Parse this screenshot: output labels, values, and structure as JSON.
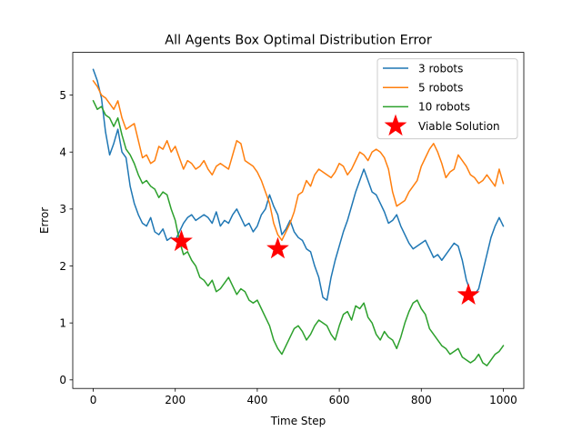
{
  "chart_data": {
    "type": "line",
    "title": "All Agents Box Optimal Distribution Error",
    "xlabel": "Time Step",
    "ylabel": "Error",
    "xlim": [
      -50,
      1050
    ],
    "ylim": [
      -0.15,
      5.75
    ],
    "xticks": [
      0,
      200,
      400,
      600,
      800,
      1000
    ],
    "yticks": [
      0,
      1,
      2,
      3,
      4,
      5
    ],
    "grid": false,
    "legend_position": "top-right",
    "series": [
      {
        "name": "3 robots",
        "color": "#1f77b4",
        "x": [
          0,
          10,
          20,
          30,
          40,
          50,
          60,
          70,
          80,
          90,
          100,
          110,
          120,
          130,
          140,
          150,
          160,
          170,
          180,
          190,
          200,
          210,
          220,
          230,
          240,
          250,
          260,
          270,
          280,
          290,
          300,
          310,
          320,
          330,
          340,
          350,
          360,
          370,
          380,
          390,
          400,
          410,
          420,
          430,
          440,
          450,
          460,
          470,
          480,
          490,
          500,
          510,
          520,
          530,
          540,
          550,
          560,
          570,
          580,
          590,
          600,
          610,
          620,
          630,
          640,
          650,
          660,
          670,
          680,
          690,
          700,
          710,
          720,
          730,
          740,
          750,
          760,
          770,
          780,
          790,
          800,
          810,
          820,
          830,
          840,
          850,
          860,
          870,
          880,
          890,
          900,
          910,
          920,
          930,
          940,
          950,
          960,
          970,
          980,
          990,
          1000
        ],
        "y": [
          5.45,
          5.25,
          4.95,
          4.35,
          3.95,
          4.15,
          4.4,
          4.0,
          3.9,
          3.4,
          3.1,
          2.9,
          2.75,
          2.7,
          2.85,
          2.6,
          2.55,
          2.65,
          2.45,
          2.5,
          2.45,
          2.6,
          2.75,
          2.85,
          2.9,
          2.8,
          2.85,
          2.9,
          2.85,
          2.75,
          2.95,
          2.7,
          2.8,
          2.75,
          2.9,
          3.0,
          2.85,
          2.7,
          2.75,
          2.6,
          2.7,
          2.9,
          3.0,
          3.25,
          3.05,
          2.9,
          2.55,
          2.65,
          2.8,
          2.6,
          2.5,
          2.45,
          2.3,
          2.25,
          2.0,
          1.8,
          1.45,
          1.4,
          1.8,
          2.1,
          2.35,
          2.6,
          2.8,
          3.05,
          3.3,
          3.5,
          3.7,
          3.5,
          3.3,
          3.25,
          3.1,
          2.95,
          2.75,
          2.8,
          2.9,
          2.7,
          2.55,
          2.4,
          2.3,
          2.35,
          2.4,
          2.45,
          2.3,
          2.15,
          2.2,
          2.1,
          2.2,
          2.3,
          2.4,
          2.35,
          2.1,
          1.75,
          1.55,
          1.5,
          1.6,
          1.9,
          2.2,
          2.5,
          2.7,
          2.85,
          2.7
        ]
      },
      {
        "name": "5 robots",
        "color": "#ff7f0e",
        "x": [
          0,
          10,
          20,
          30,
          40,
          50,
          60,
          70,
          80,
          90,
          100,
          110,
          120,
          130,
          140,
          150,
          160,
          170,
          180,
          190,
          200,
          210,
          220,
          230,
          240,
          250,
          260,
          270,
          280,
          290,
          300,
          310,
          320,
          330,
          340,
          350,
          360,
          370,
          380,
          390,
          400,
          410,
          420,
          430,
          440,
          450,
          460,
          470,
          480,
          490,
          500,
          510,
          520,
          530,
          540,
          550,
          560,
          570,
          580,
          590,
          600,
          610,
          620,
          630,
          640,
          650,
          660,
          670,
          680,
          690,
          700,
          710,
          720,
          730,
          740,
          750,
          760,
          770,
          780,
          790,
          800,
          810,
          820,
          830,
          840,
          850,
          860,
          870,
          880,
          890,
          900,
          910,
          920,
          930,
          940,
          950,
          960,
          970,
          980,
          990,
          1000
        ],
        "y": [
          5.25,
          5.15,
          5.0,
          4.95,
          4.85,
          4.75,
          4.9,
          4.6,
          4.4,
          4.45,
          4.5,
          4.2,
          3.9,
          3.95,
          3.8,
          3.85,
          4.1,
          4.05,
          4.2,
          4.0,
          4.1,
          3.9,
          3.7,
          3.85,
          3.8,
          3.7,
          3.75,
          3.85,
          3.7,
          3.6,
          3.75,
          3.8,
          3.75,
          3.7,
          3.95,
          4.2,
          4.15,
          3.85,
          3.8,
          3.75,
          3.65,
          3.5,
          3.3,
          3.1,
          2.75,
          2.55,
          2.45,
          2.6,
          2.75,
          2.95,
          3.25,
          3.3,
          3.5,
          3.4,
          3.6,
          3.7,
          3.65,
          3.6,
          3.55,
          3.65,
          3.8,
          3.75,
          3.6,
          3.7,
          3.85,
          4.0,
          3.95,
          3.85,
          4.0,
          4.05,
          4.0,
          3.9,
          3.7,
          3.3,
          3.05,
          3.1,
          3.15,
          3.3,
          3.4,
          3.5,
          3.75,
          3.9,
          4.05,
          4.15,
          4.0,
          3.8,
          3.55,
          3.65,
          3.7,
          3.95,
          3.85,
          3.75,
          3.6,
          3.55,
          3.45,
          3.5,
          3.6,
          3.5,
          3.4,
          3.7,
          3.45
        ]
      },
      {
        "name": "10 robots",
        "color": "#2ca02c",
        "x": [
          0,
          10,
          20,
          30,
          40,
          50,
          60,
          70,
          80,
          90,
          100,
          110,
          120,
          130,
          140,
          150,
          160,
          170,
          180,
          190,
          200,
          210,
          220,
          230,
          240,
          250,
          260,
          270,
          280,
          290,
          300,
          310,
          320,
          330,
          340,
          350,
          360,
          370,
          380,
          390,
          400,
          410,
          420,
          430,
          440,
          450,
          460,
          470,
          480,
          490,
          500,
          510,
          520,
          530,
          540,
          550,
          560,
          570,
          580,
          590,
          600,
          610,
          620,
          630,
          640,
          650,
          660,
          670,
          680,
          690,
          700,
          710,
          720,
          730,
          740,
          750,
          760,
          770,
          780,
          790,
          800,
          810,
          820,
          830,
          840,
          850,
          860,
          870,
          880,
          890,
          900,
          910,
          920,
          930,
          940,
          950,
          960,
          970,
          980,
          990,
          1000
        ],
        "y": [
          4.9,
          4.75,
          4.8,
          4.65,
          4.6,
          4.45,
          4.6,
          4.3,
          4.05,
          3.95,
          3.8,
          3.6,
          3.45,
          3.5,
          3.4,
          3.35,
          3.2,
          3.3,
          3.25,
          3.0,
          2.8,
          2.45,
          2.2,
          2.25,
          2.1,
          2.0,
          1.8,
          1.75,
          1.65,
          1.75,
          1.55,
          1.6,
          1.7,
          1.8,
          1.65,
          1.5,
          1.6,
          1.55,
          1.4,
          1.35,
          1.4,
          1.25,
          1.1,
          0.95,
          0.7,
          0.55,
          0.45,
          0.6,
          0.75,
          0.9,
          0.95,
          0.85,
          0.7,
          0.8,
          0.95,
          1.05,
          1.0,
          0.95,
          0.8,
          0.7,
          0.95,
          1.15,
          1.2,
          1.05,
          1.3,
          1.25,
          1.35,
          1.1,
          1.0,
          0.8,
          0.7,
          0.85,
          0.75,
          0.7,
          0.55,
          0.75,
          1.0,
          1.2,
          1.35,
          1.4,
          1.25,
          1.15,
          0.9,
          0.8,
          0.7,
          0.6,
          0.55,
          0.45,
          0.5,
          0.55,
          0.4,
          0.35,
          0.3,
          0.35,
          0.45,
          0.3,
          0.25,
          0.35,
          0.45,
          0.5,
          0.6
        ]
      }
    ],
    "markers": {
      "name": "Viable Solution",
      "color": "#ff0000",
      "points": [
        {
          "x": 215,
          "y": 2.43
        },
        {
          "x": 450,
          "y": 2.3
        },
        {
          "x": 915,
          "y": 1.49
        }
      ]
    }
  }
}
